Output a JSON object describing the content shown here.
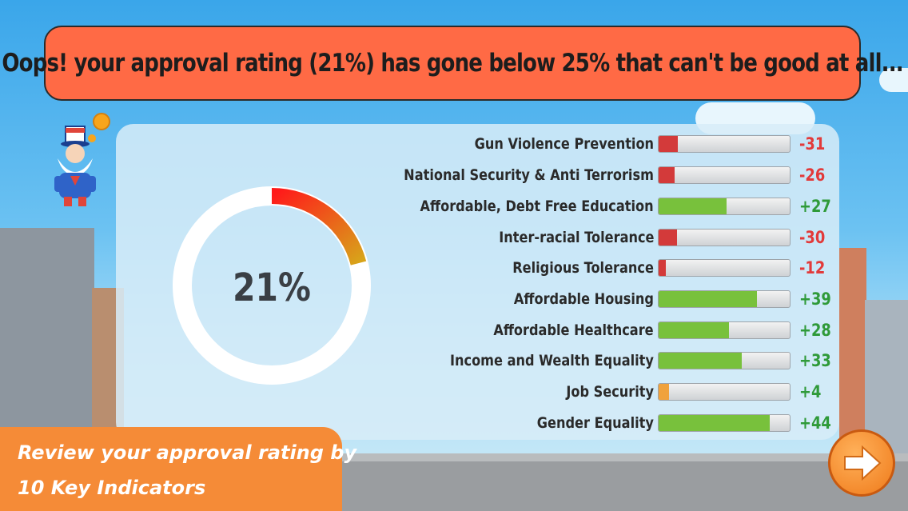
{
  "banner": {
    "message": "Oops! your approval rating (21%) has gone below 25% that can't be good at all..."
  },
  "approval": {
    "percent_label": "21%",
    "percent": 21
  },
  "indicators": [
    {
      "label": "Gun Violence Prevention",
      "value": "-31",
      "score": -31,
      "color": "#d33a3a"
    },
    {
      "label": "National Security & Anti Terrorism",
      "value": "-26",
      "score": -26,
      "color": "#d33a3a"
    },
    {
      "label": "Affordable, Debt Free Education",
      "value": "+27",
      "score": 27,
      "color": "#78c13c"
    },
    {
      "label": "Inter-racial Tolerance",
      "value": "-30",
      "score": -30,
      "color": "#d33a3a"
    },
    {
      "label": "Religious Tolerance",
      "value": "-12",
      "score": -12,
      "color": "#d33a3a"
    },
    {
      "label": "Affordable Housing",
      "value": "+39",
      "score": 39,
      "color": "#78c13c"
    },
    {
      "label": "Affordable Healthcare",
      "value": "+28",
      "score": 28,
      "color": "#78c13c"
    },
    {
      "label": "Income and Wealth Equality",
      "value": "+33",
      "score": 33,
      "color": "#78c13c"
    },
    {
      "label": "Job Security",
      "value": "+4",
      "score": 4,
      "color": "#f0a23c"
    },
    {
      "label": "Gender Equality",
      "value": "+44",
      "score": 44,
      "color": "#78c13c"
    }
  ],
  "review_panel": {
    "line1": "Review your approval rating by",
    "line2": "10 Key Indicators"
  },
  "next_button": {
    "icon": "arrow-right-icon"
  }
}
